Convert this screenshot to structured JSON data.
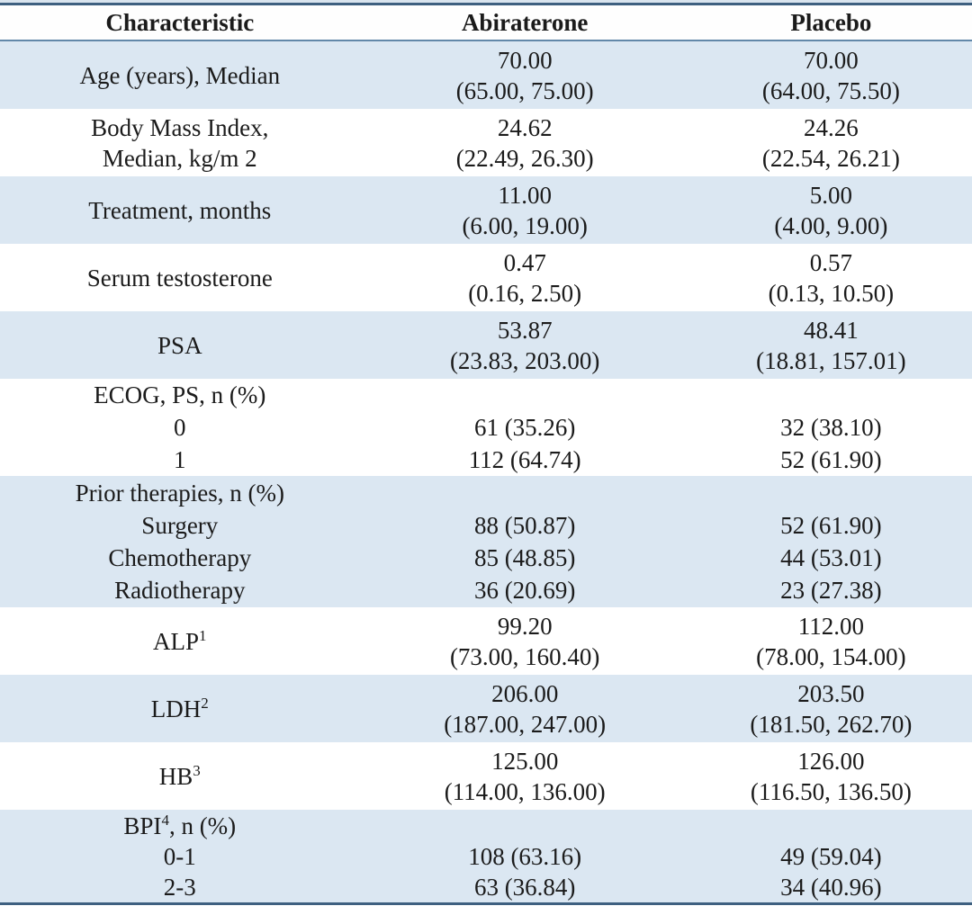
{
  "colors": {
    "band_blue": "#dbe7f2",
    "outer_rule": "#3e6080",
    "header_rule": "#6288a9",
    "text": "#1b1b1b"
  },
  "table": {
    "columns": [
      "Characteristic",
      "Abiraterone",
      "Placebo"
    ],
    "rows": [
      {
        "label": [
          "Age (years), Median"
        ],
        "abiraterone": [
          "70.00",
          "(65.00, 75.00)"
        ],
        "placebo": [
          "70.00",
          "(64.00, 75.50)"
        ]
      },
      {
        "label": [
          "Body Mass Index,",
          "Median, kg/m 2"
        ],
        "abiraterone": [
          "24.62",
          "(22.49, 26.30)"
        ],
        "placebo": [
          "24.26",
          "(22.54, 26.21)"
        ]
      },
      {
        "label": [
          "Treatment, months"
        ],
        "abiraterone": [
          "11.00",
          "(6.00, 19.00)"
        ],
        "placebo": [
          "5.00",
          "(4.00, 9.00)"
        ]
      },
      {
        "label": [
          "Serum testosterone"
        ],
        "abiraterone": [
          "0.47",
          "(0.16, 2.50)"
        ],
        "placebo": [
          "0.57",
          "(0.13, 10.50)"
        ]
      },
      {
        "label": [
          "PSA"
        ],
        "abiraterone": [
          "53.87",
          "(23.83, 203.00)"
        ],
        "placebo": [
          "48.41",
          "(18.81, 157.01)"
        ]
      },
      {
        "group_pre": "ECOG, PS, n (%)",
        "group_sup": "",
        "group_post": "",
        "items": [
          {
            "label": "0",
            "abiraterone": "61 (35.26)",
            "placebo": "32 (38.10)"
          },
          {
            "label": "1",
            "abiraterone": "112 (64.74)",
            "placebo": "52 (61.90)"
          }
        ]
      },
      {
        "group_pre": "Prior therapies, n (%)",
        "group_sup": "",
        "group_post": "",
        "items": [
          {
            "label": "Surgery",
            "abiraterone": "88 (50.87)",
            "placebo": "52 (61.90)"
          },
          {
            "label": "Chemotherapy",
            "abiraterone": "85 (48.85)",
            "placebo": "44 (53.01)"
          },
          {
            "label": "Radiotherapy",
            "abiraterone": "36 (20.69)",
            "placebo": "23 (27.38)"
          }
        ]
      },
      {
        "label_main": "ALP",
        "label_sup": "1",
        "abiraterone": [
          "99.20",
          "(73.00, 160.40)"
        ],
        "placebo": [
          "112.00",
          "(78.00, 154.00)"
        ]
      },
      {
        "label_main": "LDH",
        "label_sup": "2",
        "abiraterone": [
          "206.00",
          "(187.00, 247.00)"
        ],
        "placebo": [
          "203.50",
          "(181.50, 262.70)"
        ]
      },
      {
        "label_main": "HB",
        "label_sup": "3",
        "abiraterone": [
          "125.00",
          "(114.00, 136.00)"
        ],
        "placebo": [
          "126.00",
          "(116.50, 136.50)"
        ]
      },
      {
        "group_pre": "BPI",
        "group_sup": "4",
        "group_post": ", n (%)",
        "items": [
          {
            "label": "0-1",
            "abiraterone": "108 (63.16)",
            "placebo": "49 (59.04)"
          },
          {
            "label": "2-3",
            "abiraterone": "63 (36.84)",
            "placebo": "34 (40.96)"
          }
        ]
      }
    ]
  }
}
